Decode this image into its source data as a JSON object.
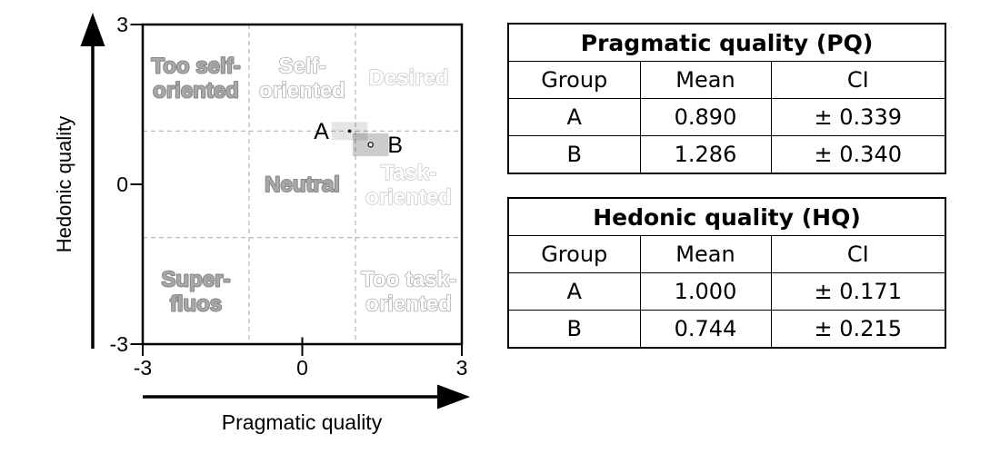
{
  "chart_data": {
    "type": "scatter",
    "title": "",
    "xlabel": "Pragmatic quality",
    "ylabel": "Hedonic quality",
    "xlim": [
      -3,
      3
    ],
    "ylim": [
      -3,
      3
    ],
    "xticks": [
      {
        "value": -3,
        "label": "-3"
      },
      {
        "value": 0,
        "label": "0"
      },
      {
        "value": 3,
        "label": "3"
      }
    ],
    "yticks": [
      {
        "value": 3,
        "label": "3"
      },
      {
        "value": 0,
        "label": "0"
      },
      {
        "value": -3,
        "label": "-3"
      }
    ],
    "grid": {
      "x": [
        -1,
        1
      ],
      "y": [
        -1,
        1
      ],
      "style": "dashed",
      "color": "#b3b3b3"
    },
    "label_styles": {
      "solid": {
        "fill": "#a8a8a8",
        "stroke": "#858585",
        "width": 2
      },
      "outline": {
        "fill": "#ffffff",
        "stroke": "#aeaeae",
        "width": 1.6
      },
      "light": {
        "fill": "#ffffff",
        "stroke": "#c9c9c9",
        "width": 1.6
      }
    },
    "quadrant_labels": [
      {
        "lines": [
          "Too self-",
          "oriented"
        ],
        "x": -2,
        "y": 2,
        "style": "solid"
      },
      {
        "lines": [
          "Self-",
          "oriented"
        ],
        "x": 0,
        "y": 2,
        "style": "outline"
      },
      {
        "lines": [
          "Desired"
        ],
        "x": 2,
        "y": 2,
        "style": "light"
      },
      {
        "lines": [
          "Neutral"
        ],
        "x": 0,
        "y": 0,
        "style": "solid"
      },
      {
        "lines": [
          "Task-",
          "oriented"
        ],
        "x": 2,
        "y": 0,
        "style": "light"
      },
      {
        "lines": [
          "Super-",
          "fluos"
        ],
        "x": -2,
        "y": -2,
        "style": "solid"
      },
      {
        "lines": [
          "Too task-",
          "oriented"
        ],
        "x": 2,
        "y": -2,
        "style": "outline"
      }
    ],
    "series": [
      {
        "name": "A",
        "pq_mean": 0.89,
        "pq_ci": 0.339,
        "hq_mean": 1.0,
        "hq_ci": 0.171,
        "box_color": "rgba(0,0,0,0.10)",
        "marker": "dot",
        "label_side": "left"
      },
      {
        "name": "B",
        "pq_mean": 1.286,
        "pq_ci": 0.34,
        "hq_mean": 0.744,
        "hq_ci": 0.215,
        "box_color": "rgba(0,0,0,0.20)",
        "marker": "open-circle",
        "label_side": "right"
      }
    ]
  },
  "tables": [
    {
      "title": "Pragmatic quality (PQ)",
      "columns": [
        "Group",
        "Mean",
        "CI"
      ],
      "rows": [
        [
          "A",
          "0.890",
          "± 0.339"
        ],
        [
          "B",
          "1.286",
          "± 0.340"
        ]
      ]
    },
    {
      "title": "Hedonic quality (HQ)",
      "columns": [
        "Group",
        "Mean",
        "CI"
      ],
      "rows": [
        [
          "A",
          "1.000",
          "± 0.171"
        ],
        [
          "B",
          "0.744",
          "± 0.215"
        ]
      ]
    }
  ]
}
